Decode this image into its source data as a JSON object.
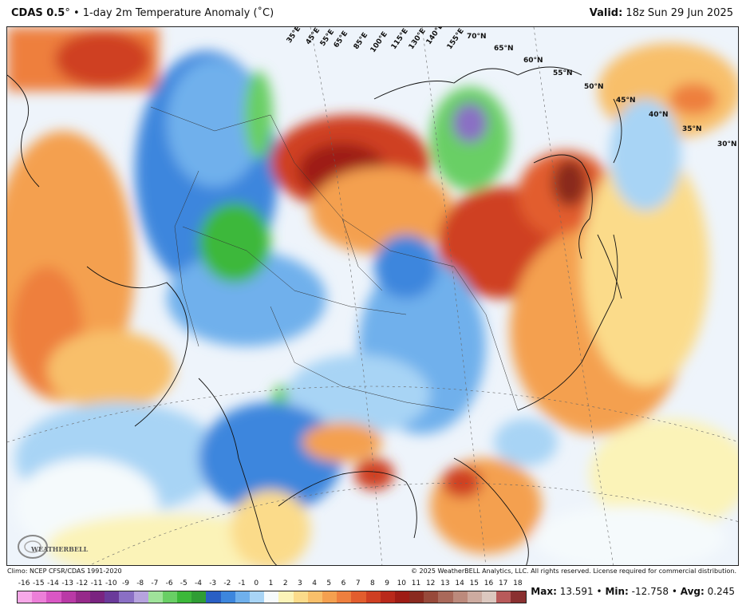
{
  "header": {
    "model": "CDAS 0.5",
    "degree": "°",
    "description": "• 1-day 2m Temperature Anomaly (˚C)",
    "valid_label": "Valid:",
    "valid_time": "18z Sun 29 Jun 2025"
  },
  "map": {
    "lat_labels": [
      "70°N",
      "65°N",
      "60°N",
      "55°N",
      "50°N",
      "45°N",
      "40°N",
      "35°N",
      "30°N"
    ],
    "lon_labels": [
      "35°E",
      "45°E",
      "55°E",
      "65°E",
      "85°E",
      "100°E",
      "115°E",
      "130°E",
      "140°E",
      "155°E"
    ],
    "logo_text": "WEATHERBELL",
    "logo_sub": "Analytics LLC"
  },
  "footer": {
    "climo": "Climo: NCEP CFSR/CDAS 1991-2020",
    "copyright": "© 2025 WeatherBELL Analytics, LLC. All rights reserved. License required for commercial distribution."
  },
  "colorbar": {
    "labels": [
      "-16",
      "-15",
      "-14",
      "-13",
      "-12",
      "-11",
      "-10",
      "-9",
      "-8",
      "-7",
      "-6",
      "-5",
      "-4",
      "-3",
      "-2",
      "-1",
      "0",
      "1",
      "2",
      "3",
      "4",
      "5",
      "6",
      "7",
      "8",
      "9",
      "10",
      "11",
      "12",
      "13",
      "14",
      "15",
      "16",
      "17",
      "18"
    ],
    "colors": [
      "#f7a8e8",
      "#ec7fd8",
      "#d957c4",
      "#b93aa6",
      "#962a8a",
      "#7a2480",
      "#6a3a9a",
      "#8a6fc4",
      "#b6a3de",
      "#9fe39a",
      "#69cf65",
      "#3cb83a",
      "#2f9d34",
      "#2a5fc4",
      "#3d86dd",
      "#6fb0ec",
      "#a8d4f5",
      "#f5fafc",
      "#fbf3b8",
      "#fbdb8a",
      "#f8bf6a",
      "#f4a04f",
      "#ee7f3e",
      "#e25d2d",
      "#cf3f22",
      "#b9291b",
      "#9e1c15",
      "#8a2a1f",
      "#97493a",
      "#a9695a",
      "#bc8a7c",
      "#cdaba0",
      "#dcc8bf",
      "#b85a5a",
      "#8a3030"
    ]
  },
  "stats": {
    "max_label": "Max:",
    "max": "13.591",
    "min_label": "Min:",
    "min": "-12.758",
    "avg_label": "Avg:",
    "avg": "0.245",
    "sep": "•"
  }
}
